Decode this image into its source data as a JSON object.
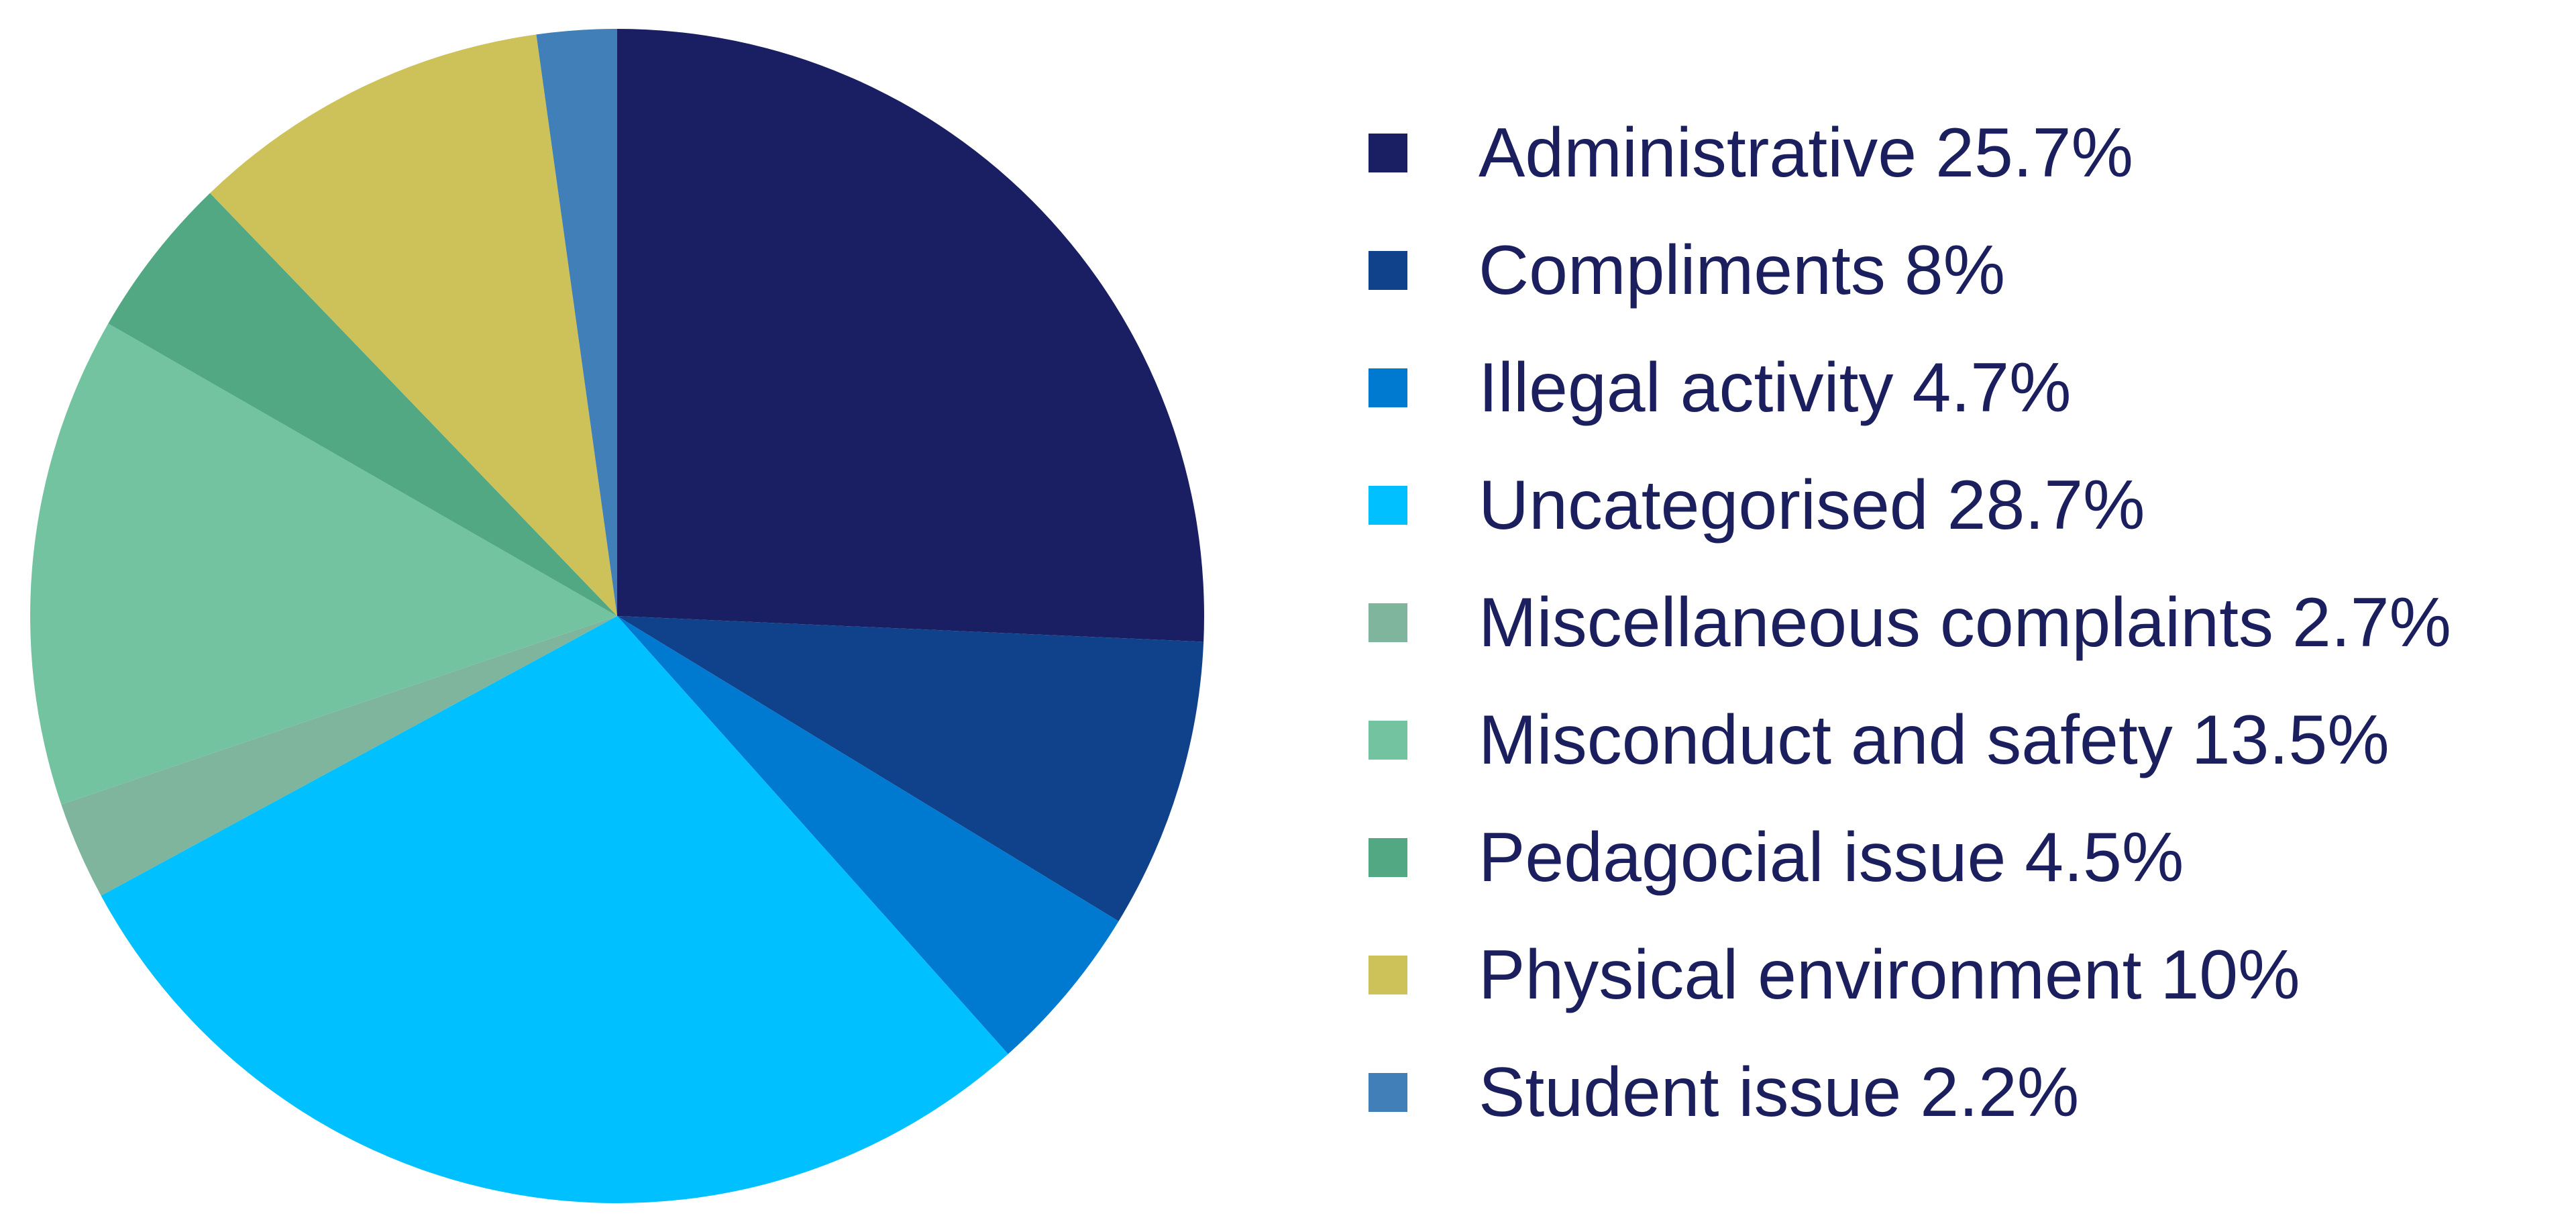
{
  "chart_data": {
    "type": "pie",
    "title": "",
    "start_angle_deg": 0,
    "direction": "clockwise",
    "legend_position": "right",
    "slices": [
      {
        "label": "Administrative",
        "value": 25.7,
        "value_text": "25.7%",
        "color": "#1a1f63"
      },
      {
        "label": "Compliments",
        "value": 8,
        "value_text": "8%",
        "color": "#0f428b"
      },
      {
        "label": "Illegal activity",
        "value": 4.7,
        "value_text": "4.7%",
        "color": "#0079d0"
      },
      {
        "label": "Uncategorised",
        "value": 28.7,
        "value_text": "28.7%",
        "color": "#00c0ff"
      },
      {
        "label": "Miscellaneous complaints",
        "value": 2.7,
        "value_text": "2.7%",
        "color": "#7fb59c"
      },
      {
        "label": "Misconduct and safety",
        "value": 13.5,
        "value_text": "13.5%",
        "color": "#73c3a1"
      },
      {
        "label": "Pedagocial issue",
        "value": 4.5,
        "value_text": "4.5%",
        "color": "#51a883"
      },
      {
        "label": "Physical environment",
        "value": 10,
        "value_text": "10%",
        "color": "#cdc259"
      },
      {
        "label": "Student issue",
        "value": 2.2,
        "value_text": "2.2%",
        "color": "#407fb8"
      }
    ]
  }
}
